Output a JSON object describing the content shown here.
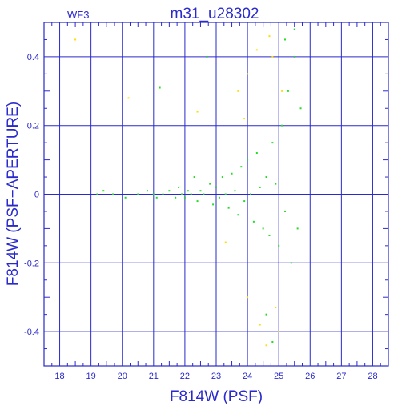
{
  "chart_data": {
    "type": "scatter",
    "title": "m31_u28302",
    "panel_label": "WF3",
    "xlabel": "F814W (PSF)",
    "ylabel": "F814W (PSF−APERTURE)",
    "xlim": [
      17.5,
      28.5
    ],
    "ylim": [
      -0.5,
      0.5
    ],
    "x_ticks": [
      18,
      19,
      20,
      21,
      22,
      23,
      24,
      25,
      26,
      27,
      28
    ],
    "y_ticks": [
      -0.4,
      -0.2,
      0,
      0.2,
      0.4
    ],
    "x_tick_labels": [
      "18",
      "19",
      "20",
      "21",
      "22",
      "23",
      "24",
      "25",
      "26",
      "27",
      "28"
    ],
    "y_tick_labels": [
      "-0.4",
      "-0.2",
      "0",
      "0.2",
      "0.4"
    ],
    "grid": true,
    "colors": {
      "axis": "#2a2acc",
      "grid": "#2a2acc",
      "series_main": "#22dd22",
      "series_alt": "#ffdd00"
    },
    "series": [
      {
        "color": "#22dd22",
        "points": [
          [
            19.2,
            0.0
          ],
          [
            19.4,
            0.01
          ],
          [
            19.7,
            0.0
          ],
          [
            20.1,
            -0.01
          ],
          [
            20.5,
            0.0
          ],
          [
            20.8,
            0.01
          ],
          [
            21.0,
            0.0
          ],
          [
            21.2,
            0.31
          ],
          [
            21.1,
            -0.01
          ],
          [
            21.3,
            0.0
          ],
          [
            21.5,
            0.01
          ],
          [
            21.7,
            -0.01
          ],
          [
            21.8,
            0.02
          ],
          [
            21.9,
            0.0
          ],
          [
            22.0,
            -0.01
          ],
          [
            22.1,
            0.01
          ],
          [
            22.2,
            0.0
          ],
          [
            22.3,
            0.05
          ],
          [
            22.4,
            -0.02
          ],
          [
            22.5,
            0.01
          ],
          [
            22.6,
            0.0
          ],
          [
            22.7,
            0.4
          ],
          [
            22.8,
            0.03
          ],
          [
            22.9,
            -0.03
          ],
          [
            23.0,
            0.02
          ],
          [
            23.1,
            -0.01
          ],
          [
            23.2,
            0.05
          ],
          [
            23.3,
            0.0
          ],
          [
            23.4,
            -0.04
          ],
          [
            23.5,
            0.06
          ],
          [
            23.6,
            0.01
          ],
          [
            23.7,
            -0.06
          ],
          [
            23.8,
            0.08
          ],
          [
            23.9,
            -0.02
          ],
          [
            24.0,
            0.1
          ],
          [
            24.1,
            0.0
          ],
          [
            24.2,
            -0.08
          ],
          [
            24.3,
            0.12
          ],
          [
            24.4,
            0.02
          ],
          [
            24.5,
            -0.1
          ],
          [
            24.6,
            0.05
          ],
          [
            24.7,
            -0.12
          ],
          [
            24.8,
            0.15
          ],
          [
            24.9,
            0.03
          ],
          [
            25.0,
            -0.15
          ],
          [
            25.1,
            0.2
          ],
          [
            25.2,
            -0.05
          ],
          [
            25.3,
            0.3
          ],
          [
            25.4,
            -0.2
          ],
          [
            25.5,
            0.4
          ],
          [
            25.6,
            -0.1
          ],
          [
            25.7,
            0.25
          ],
          [
            25.2,
            0.45
          ],
          [
            24.6,
            -0.35
          ],
          [
            24.8,
            -0.43
          ],
          [
            25.5,
            0.48
          ]
        ]
      },
      {
        "color": "#ffdd00",
        "points": [
          [
            18.5,
            0.45
          ],
          [
            20.2,
            0.28
          ],
          [
            22.4,
            0.24
          ],
          [
            23.7,
            0.3
          ],
          [
            24.0,
            0.35
          ],
          [
            24.3,
            0.42
          ],
          [
            24.8,
            0.4
          ],
          [
            25.1,
            0.3
          ],
          [
            24.0,
            -0.3
          ],
          [
            24.4,
            -0.38
          ],
          [
            24.6,
            -0.44
          ],
          [
            24.9,
            -0.33
          ],
          [
            25.0,
            -0.4
          ],
          [
            23.3,
            -0.14
          ],
          [
            23.9,
            0.22
          ],
          [
            24.7,
            0.46
          ]
        ]
      }
    ]
  }
}
